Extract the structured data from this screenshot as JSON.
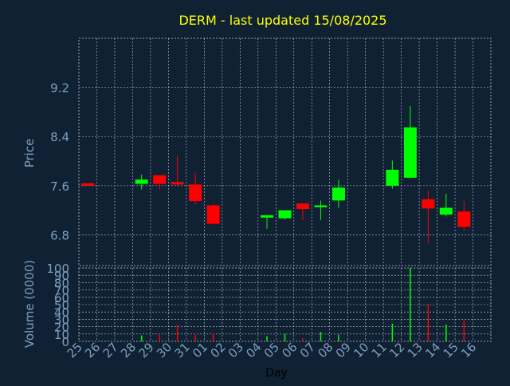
{
  "chart_data": [
    {
      "type": "candlestick",
      "title": "DERM - last updated 15/08/2025",
      "xlabel": "",
      "ylabel": "Price",
      "ylim": [
        6.3,
        10.0
      ],
      "yticks": [
        6.8,
        7.6,
        8.4,
        9.2
      ],
      "ytick_labels": [
        "6.8",
        "7.6",
        "8.4",
        "9.2"
      ],
      "grid": true,
      "categories": [
        "25",
        "26",
        "27",
        "28",
        "29",
        "30",
        "31",
        "01",
        "02",
        "03",
        "04",
        "05",
        "06",
        "07",
        "08",
        "09",
        "10",
        "11",
        "12",
        "13",
        "14",
        "15",
        "16"
      ],
      "candles": [
        {
          "day": "25",
          "open": 7.64,
          "close": 7.6,
          "high": 7.64,
          "low": 7.6
        },
        {
          "day": "28",
          "open": 7.63,
          "close": 7.7,
          "high": 7.78,
          "low": 7.54
        },
        {
          "day": "29",
          "open": 7.77,
          "close": 7.63,
          "high": 7.77,
          "low": 7.54
        },
        {
          "day": "30",
          "open": 7.66,
          "close": 7.62,
          "high": 8.09,
          "low": 7.6
        },
        {
          "day": "31",
          "open": 7.62,
          "close": 7.35,
          "high": 7.81,
          "low": 7.3
        },
        {
          "day": "01",
          "open": 7.28,
          "close": 6.98,
          "high": 7.3,
          "low": 6.98
        },
        {
          "day": "04",
          "open": 7.08,
          "close": 7.12,
          "high": 7.12,
          "low": 6.9
        },
        {
          "day": "05",
          "open": 7.07,
          "close": 7.2,
          "high": 7.2,
          "low": 7.05
        },
        {
          "day": "06",
          "open": 7.31,
          "close": 7.22,
          "high": 7.31,
          "low": 7.04
        },
        {
          "day": "07",
          "open": 7.25,
          "close": 7.28,
          "high": 7.36,
          "low": 7.04
        },
        {
          "day": "08",
          "open": 7.36,
          "close": 7.57,
          "high": 7.7,
          "low": 7.24
        },
        {
          "day": "11",
          "open": 7.6,
          "close": 7.86,
          "high": 8.01,
          "low": 7.55
        },
        {
          "day": "12",
          "open": 7.73,
          "close": 8.55,
          "high": 8.9,
          "low": 7.73
        },
        {
          "day": "13",
          "open": 7.38,
          "close": 7.23,
          "high": 7.52,
          "low": 6.66
        },
        {
          "day": "14",
          "open": 7.13,
          "close": 7.24,
          "high": 7.47,
          "low": 7.1
        },
        {
          "day": "15",
          "open": 7.18,
          "close": 6.93,
          "high": 7.35,
          "low": 6.86
        }
      ],
      "colors": {
        "up": "#00ff00",
        "down": "#ff0000",
        "title": "#ffff00",
        "axis_text": "#7e9fc0",
        "grid": "#bcc8d4",
        "background": "#0f2133"
      }
    },
    {
      "type": "bar",
      "title": "",
      "xlabel": "Day",
      "ylabel": "Volume (0000)",
      "ylim": [
        0,
        100
      ],
      "yticks": [
        0,
        10,
        20,
        30,
        40,
        50,
        60,
        70,
        80,
        90,
        100
      ],
      "ytick_labels": [
        "0",
        "10",
        "20",
        "30",
        "40",
        "50",
        "60",
        "70",
        "80",
        "90",
        "100"
      ],
      "categories": [
        "25",
        "26",
        "27",
        "28",
        "29",
        "30",
        "31",
        "01",
        "02",
        "03",
        "04",
        "05",
        "06",
        "07",
        "08",
        "09",
        "10",
        "11",
        "12",
        "13",
        "14",
        "15",
        "16"
      ],
      "bars": [
        {
          "day": "25",
          "value": 1,
          "direction": "down"
        },
        {
          "day": "28",
          "value": 8,
          "direction": "up"
        },
        {
          "day": "29",
          "value": 9,
          "direction": "down"
        },
        {
          "day": "30",
          "value": 23,
          "direction": "down"
        },
        {
          "day": "31",
          "value": 9,
          "direction": "down"
        },
        {
          "day": "01",
          "value": 11,
          "direction": "down"
        },
        {
          "day": "04",
          "value": 7,
          "direction": "up"
        },
        {
          "day": "05",
          "value": 10,
          "direction": "up"
        },
        {
          "day": "06",
          "value": 4,
          "direction": "down"
        },
        {
          "day": "07",
          "value": 13,
          "direction": "up"
        },
        {
          "day": "08",
          "value": 9,
          "direction": "up"
        },
        {
          "day": "11",
          "value": 24,
          "direction": "up"
        },
        {
          "day": "12",
          "value": 100,
          "direction": "up"
        },
        {
          "day": "13",
          "value": 50,
          "direction": "down"
        },
        {
          "day": "14",
          "value": 23,
          "direction": "up"
        },
        {
          "day": "15",
          "value": 28,
          "direction": "down"
        }
      ]
    }
  ]
}
